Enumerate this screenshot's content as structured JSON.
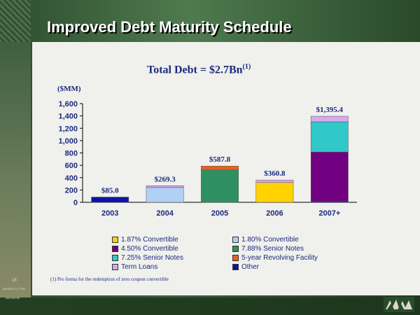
{
  "slide": {
    "title": "Improved Debt Maturity Schedule",
    "page_number": "18",
    "date_stamp": "8/6/2003 3:17 PM",
    "owner": "tubCar/Cell"
  },
  "chart_data": {
    "type": "bar",
    "stacked": true,
    "title": "Total Debt = $2.7Bn",
    "title_sup": "(1)",
    "ylabel": "($MM)",
    "categories": [
      "2003",
      "2004",
      "2005",
      "2006",
      "2007+"
    ],
    "ylim": [
      0,
      1600
    ],
    "yticks": [
      0,
      200,
      400,
      600,
      800,
      1000,
      1200,
      1400,
      1600
    ],
    "ytick_labels": [
      "0",
      "200",
      "400",
      "600",
      "800",
      "1,000",
      "1,200",
      "1,400",
      "1,600"
    ],
    "totals": [
      "$85.0",
      "$269.3",
      "$587.8",
      "$360.8",
      "$1,395.4"
    ],
    "series": [
      {
        "name": "Other",
        "color": "#0a14a8",
        "values": [
          85,
          0,
          0,
          0,
          15
        ]
      },
      {
        "name": "1.80% Convertible",
        "color": "#b0d0f5",
        "values": [
          0,
          240,
          0,
          0,
          0
        ]
      },
      {
        "name": "7.88% Senior Notes",
        "color": "#2e9060",
        "values": [
          0,
          0,
          525,
          0,
          0
        ]
      },
      {
        "name": "1.87% Convertible",
        "color": "#ffd200",
        "values": [
          0,
          0,
          0,
          320,
          0
        ]
      },
      {
        "name": "4.50% Convertible",
        "color": "#700080",
        "values": [
          0,
          0,
          0,
          0,
          800
        ]
      },
      {
        "name": "7.25% Senior Notes",
        "color": "#30c8c8",
        "values": [
          0,
          0,
          0,
          0,
          490
        ]
      },
      {
        "name": "Term Loans",
        "color": "#d8a8f0",
        "values": [
          0,
          29.3,
          0,
          40.8,
          90.4
        ]
      },
      {
        "name": "5-year Revolving Facility",
        "color": "#e86020",
        "values": [
          0,
          0,
          62.8,
          0,
          0
        ]
      }
    ],
    "legend": [
      {
        "label": "1.87% Convertible",
        "color": "#ffd200"
      },
      {
        "label": "1.80% Convertible",
        "color": "#b0d0f5"
      },
      {
        "label": "4.50% Convertible",
        "color": "#700080"
      },
      {
        "label": "7.88% Senior Notes",
        "color": "#2e9060"
      },
      {
        "label": "7.25% Senior Notes",
        "color": "#30c8c8"
      },
      {
        "label": "5-year Revolving Facility",
        "color": "#e86020"
      },
      {
        "label": "Term Loans",
        "color": "#d8a8f0"
      },
      {
        "label": "Other",
        "color": "#0a14a8"
      }
    ],
    "footnote": "(1) Pro forma for the redemption of zero coupon convertible"
  }
}
